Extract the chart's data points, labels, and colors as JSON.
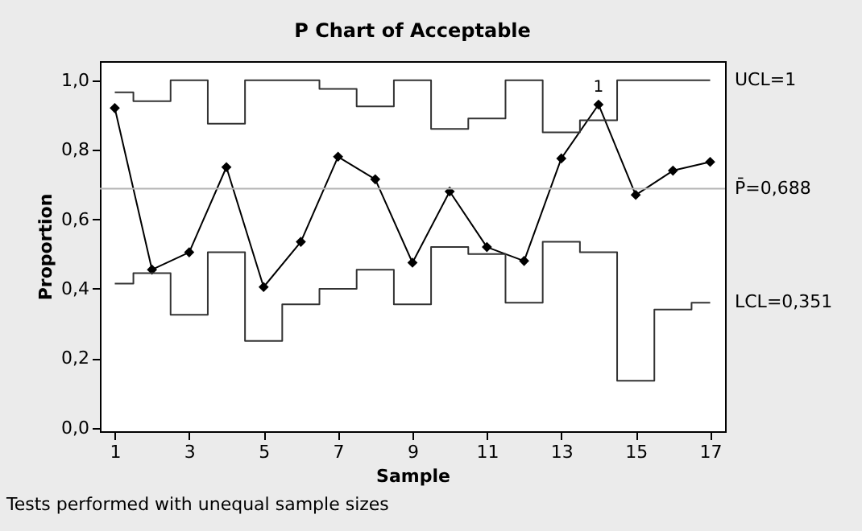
{
  "chart_data": {
    "type": "line",
    "title": "P Chart of Acceptable",
    "xlabel": "Sample",
    "ylabel": "Proportion",
    "x": [
      1,
      2,
      3,
      4,
      5,
      6,
      7,
      8,
      9,
      10,
      11,
      12,
      13,
      14,
      15,
      16,
      17
    ],
    "series": [
      {
        "color": "#000000",
        "marker": "diamond",
        "values": [
          0.92,
          0.455,
          0.505,
          0.75,
          0.405,
          0.535,
          0.78,
          0.715,
          0.475,
          0.68,
          0.52,
          0.48,
          0.775,
          0.93,
          0.67,
          0.74,
          0.765
        ]
      },
      {
        "name": "UCL=1",
        "type": "step",
        "marker": "none",
        "color": "#333333",
        "values": [
          0.965,
          0.94,
          1.0,
          0.875,
          1.0,
          1.0,
          0.975,
          0.925,
          1.0,
          0.86,
          0.89,
          1.0,
          0.85,
          0.885,
          1.0,
          1.0,
          1.0
        ]
      },
      {
        "name": "LCL=0,351",
        "type": "step",
        "marker": "none",
        "color": "#333333",
        "values": [
          0.415,
          0.445,
          0.325,
          0.505,
          0.25,
          0.355,
          0.4,
          0.455,
          0.355,
          0.52,
          0.5,
          0.36,
          0.535,
          0.505,
          0.135,
          0.34,
          0.36
        ]
      }
    ],
    "ref_lines": [
      {
        "axis": "y",
        "value": 0.688,
        "label": "P̄=0,688",
        "color": "#b4b4b4"
      }
    ],
    "annotations": [
      {
        "text": "1",
        "x": 14,
        "y": 0.93
      },
      "Tests performed with unequal sample sizes"
    ],
    "xlim": [
      0.6,
      17.4
    ],
    "xticks": [
      1,
      3,
      5,
      7,
      9,
      11,
      13,
      15,
      17
    ],
    "ylim": [
      -0.01,
      1.055
    ],
    "yticks": [
      {
        "value": 0,
        "label": "0,0"
      },
      {
        "value": 0.2,
        "label": "0,2"
      },
      {
        "value": 0.4,
        "label": "0,4"
      },
      {
        "value": 0.6,
        "label": "0,6"
      },
      {
        "value": 0.8,
        "label": "0,8"
      },
      {
        "value": 1.0,
        "label": "1,0"
      }
    ],
    "grid": false,
    "line_style": "solid"
  }
}
